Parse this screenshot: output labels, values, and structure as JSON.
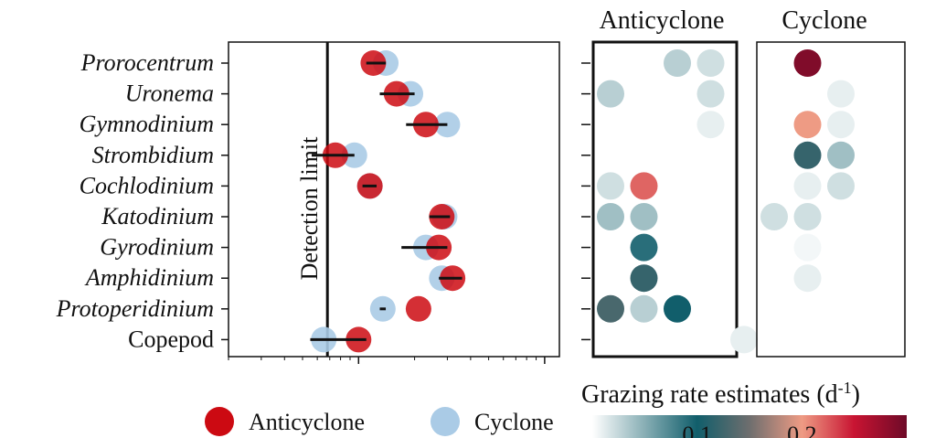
{
  "chart_data": [
    {
      "type": "scatter",
      "categories": [
        "Prorocentrum",
        "Uronema",
        "Gymnodinium",
        "Strombidium",
        "Cochlodinium",
        "Katodinium",
        "Gyrodinium",
        "Amphidinium",
        "Protoperidinium",
        "Copepod"
      ],
      "italic": [
        true,
        true,
        true,
        true,
        true,
        true,
        true,
        true,
        true,
        false
      ],
      "xscale": "log",
      "xlim": [
        0.02,
        1.2
      ],
      "series": [
        {
          "name": "Anticyclone",
          "color": "#cc0a12",
          "values": [
            0.12,
            0.16,
            0.23,
            0.075,
            0.115,
            0.28,
            0.27,
            0.32,
            0.21,
            0.1
          ],
          "err_low": [
            0.11,
            0.13,
            0.18,
            0.056,
            0.105,
            0.24,
            0.17,
            0.27,
            0.13,
            0.055
          ],
          "err_high": [
            0.14,
            0.2,
            0.3,
            0.095,
            0.125,
            0.31,
            0.3,
            0.36,
            0.14,
            0.11
          ]
        },
        {
          "name": "Cyclone",
          "color": "#aacbe6",
          "values": [
            0.14,
            0.19,
            0.3,
            0.095,
            0.115,
            0.29,
            0.23,
            0.28,
            0.135,
            0.065
          ],
          "err_low": null,
          "err_high": null
        }
      ],
      "detection_limit": 0.068,
      "annotation": "Detection limit",
      "legend": "bottom"
    },
    {
      "type": "heatmap",
      "panels": [
        {
          "title": "Anticyclone",
          "cells": [
            [
              0,
              2,
              0.03
            ],
            [
              0,
              3,
              0.02
            ],
            [
              1,
              0,
              0.03
            ],
            [
              1,
              3,
              0.02
            ],
            [
              2,
              3,
              0.01
            ],
            [
              4,
              0,
              0.02
            ],
            [
              4,
              1,
              0.22
            ],
            [
              5,
              0,
              0.04
            ],
            [
              5,
              1,
              0.04
            ],
            [
              6,
              1,
              0.09
            ],
            [
              7,
              1,
              0.12
            ],
            [
              8,
              0,
              0.13
            ],
            [
              8,
              1,
              0.03
            ],
            [
              8,
              2,
              0.1
            ],
            [
              9,
              4,
              0.01
            ]
          ]
        },
        {
          "title": "Cyclone",
          "cells": [
            [
              0,
              1,
              0.29
            ],
            [
              1,
              2,
              0.01
            ],
            [
              2,
              1,
              0.2
            ],
            [
              2,
              2,
              0.01
            ],
            [
              3,
              1,
              0.12
            ],
            [
              3,
              2,
              0.04
            ],
            [
              4,
              1,
              0.01
            ],
            [
              4,
              2,
              0.02
            ],
            [
              5,
              0,
              0.02
            ],
            [
              5,
              1,
              0.02
            ],
            [
              6,
              1,
              0.005
            ],
            [
              7,
              1,
              0.01
            ]
          ]
        }
      ],
      "colorbar": {
        "title_base": "Grazing rate estimates (d",
        "title_sup": "-1",
        "title_end": ")",
        "ticks": [
          "0.1",
          "0.2"
        ],
        "tick_values": [
          0.1,
          0.2
        ],
        "range": [
          0,
          0.3
        ]
      }
    }
  ]
}
